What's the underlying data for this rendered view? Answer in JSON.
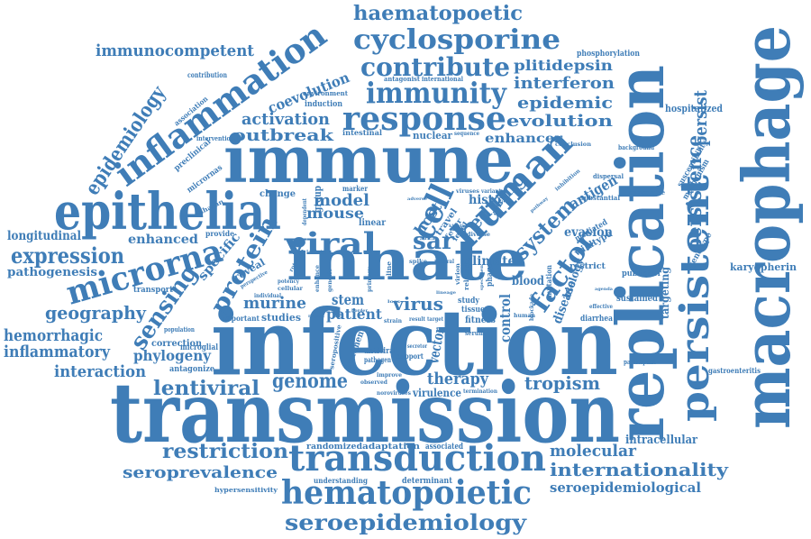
{
  "colors": {
    "word": "#3f7db7",
    "background": "#ffffff"
  },
  "words": {
    "w0": "transmission",
    "w1": "infection",
    "w2": "immune",
    "w3": "macrophage",
    "w4": "replication",
    "w5": "innate",
    "w6": "epithelial",
    "w7": "persistent",
    "w8": "transduction",
    "w9": "hematopoietic",
    "w10": "inflammation",
    "w11": "response",
    "w12": "immunity",
    "w13": "cyclosporine",
    "w14": "contribute",
    "w15": "haematopoetic",
    "w16": "seroepidemiology",
    "w17": "microrna",
    "w18": "human",
    "w19": "viral",
    "w20": "expression",
    "w21": "lentiviral",
    "w22": "genome",
    "w23": "restriction",
    "w24": "internationality",
    "w25": "seroprevalence",
    "w26": "epidemiology",
    "w27": "immunocompetent",
    "w28": "interferon",
    "w29": "evolution",
    "w30": "epidemic",
    "w31": "activation",
    "w32": "outbreak",
    "w33": "coevolution",
    "w34": "plitidepsin",
    "w35": "enhancer",
    "w36": "phosphorylation",
    "w37": "factor",
    "w38": "protein",
    "w39": "sensing",
    "w40": "specific",
    "w41": "system",
    "w42": "persistence",
    "w43": "antigen",
    "w44": "persist",
    "w45": "hemorrhagic",
    "w46": "inflammatory",
    "w47": "interaction",
    "w48": "geography",
    "w49": "phylogeny",
    "w50": "pathogenesis",
    "w51": "longitudinal",
    "w52": "enhanced",
    "w53": "murine",
    "w54": "mouse",
    "w55": "model",
    "w56": "tropism",
    "w57": "therapy",
    "w58": "molecular",
    "w59": "seroepidemiological",
    "w60": "intracellular",
    "w61": "sar",
    "w62": "evasion",
    "w63": "virus",
    "w64": "patient",
    "w65": "cell",
    "w66": "editing",
    "w67": "host",
    "w68": "climate",
    "w69": "disease",
    "w70": "biology",
    "w71": "control",
    "w72": "blood",
    "w73": "stem",
    "w74": "studies",
    "w75": "vector",
    "w76": "targeting",
    "w77": "sustained",
    "w78": "karyopherin",
    "w79": "genotype",
    "w80": "virulence",
    "w81": "randomized",
    "w82": "adaptation",
    "w83": "associated",
    "w84": "understanding",
    "w85": "determinant",
    "w86": "hypersensitivity",
    "w87": "correction",
    "w88": "antagonize",
    "w89": "microglial",
    "w90": "hospitalized",
    "w91": "gastroenteritis",
    "w92": "participant",
    "w93": "publisher",
    "w94": "diarrhea",
    "w95": "nuclear",
    "w96": "intestinal",
    "w97": "intervention",
    "w98": "preclinical",
    "w99": "micrornas",
    "w100": "association",
    "w101": "saharan",
    "w102": "change",
    "w103": "provide",
    "w104": "transport",
    "w105": "reveal",
    "w106": "linear",
    "w107": "group",
    "w108": "marker",
    "w109": "histo",
    "w110": "travel",
    "w111": "spread",
    "w112": "mediated",
    "w113": "wildtype",
    "w114": "restrict",
    "w115": "mutation",
    "w116": "substantial",
    "w117": "comparable",
    "w118": "background",
    "w119": "susceptibility",
    "w120": "mechanism",
    "w121": "inhibition",
    "w122": "conclusion",
    "w123": "contribution",
    "w124": "antagonist",
    "w125": "international",
    "w126": "environment",
    "w127": "induction",
    "w128": "sequence",
    "w129": "tissue",
    "w130": "fitness",
    "w131": "study",
    "w132": "result",
    "w133": "target",
    "w134": "serum",
    "w135": "antiviral",
    "w136": "pathogen",
    "w137": "support",
    "w138": "treatment",
    "w139": "seropositive",
    "w140": "important",
    "w141": "population",
    "w142": "improve",
    "w143": "observed",
    "w144": "noroviruses",
    "w145": "termination",
    "w146": "region",
    "w147": "strain",
    "w148": "individual",
    "w149": "perspective",
    "w150": "potency",
    "w151": "cellular",
    "w152": "dispersal",
    "w153": "human",
    "w154": "effective",
    "w155": "agenda",
    "w156": "line",
    "w157": "fever",
    "w158": "level",
    "w159": "viruses",
    "w160": "variant",
    "w161": "diverse",
    "w162": "secretor",
    "w163": "natural",
    "w164": "phage",
    "w165": "related",
    "w166": "virion",
    "w167": "isolate",
    "w168": "enhance",
    "w169": "genetic",
    "w170": "primary",
    "w171": "border",
    "w172": "rotation",
    "w173": "spike",
    "w174": "dependent",
    "w175": "loss",
    "w176": "african",
    "w177": "adverse",
    "w178": "lineage",
    "w179": "blockade",
    "w180": "specimen",
    "w181": "pathway",
    "w182": "kinetic"
  }
}
